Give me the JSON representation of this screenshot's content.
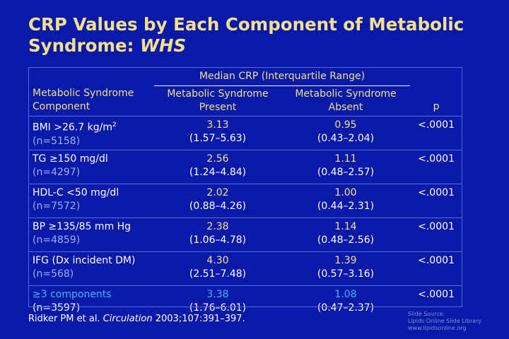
{
  "title": {
    "line1": "CRP Values by Each Component of Metabolic",
    "line2_prefix": "Syndrome: ",
    "line2_emph": "WHS"
  },
  "table": {
    "header": {
      "group": "Median CRP (Interquartile Range)",
      "component": "Metabolic Syndrome Component",
      "present": "Metabolic Syndrome Present",
      "absent": "Metabolic Syndrome Absent",
      "p": "p"
    },
    "rows": [
      {
        "label": "BMI >26.7 kg/m",
        "sup": "2",
        "n": "(n=5158)",
        "present_median": "3.13",
        "present_iqr": "(1.57–5.63)",
        "absent_median": "0.95",
        "absent_iqr": "(0.43–2.04)",
        "p": "<.0001"
      },
      {
        "label": "TG ≥150 mg/dl",
        "n": "(n=4297)",
        "present_median": "2.56",
        "present_iqr": "(1.24–4.84)",
        "absent_median": "1.11",
        "absent_iqr": "(0.48–2.57)",
        "p": "<.0001"
      },
      {
        "label": "HDL-C <50 mg/dl",
        "n": "(n=7572)",
        "present_median": "2.02",
        "present_iqr": "(0.88–4.26)",
        "absent_median": "1.00",
        "absent_iqr": "(0.44–2.31)",
        "p": "<.0001"
      },
      {
        "label": "BP ≥135/85 mm Hg",
        "n": "(n=4859)",
        "present_median": "2.38",
        "present_iqr": "(1.06–4.78)",
        "absent_median": "1.14",
        "absent_iqr": "(0.48–2.56)",
        "p": "<.0001"
      },
      {
        "label": "IFG (Dx incident DM)",
        "n": "(n=568)",
        "present_median": "4.30",
        "present_iqr": "(2.51–7.48)",
        "absent_median": "1.39",
        "absent_iqr": "(0.57–3.16)",
        "p": "<.0001"
      },
      {
        "label": "≥3 components",
        "n": "(n=3597)",
        "present_median": "3.38",
        "present_iqr": "(1.76–6.01)",
        "absent_median": "1.08",
        "absent_iqr": "(0.47–2.37)",
        "p": "<.0001"
      }
    ]
  },
  "citation": {
    "authors": "Ridker PM et al. ",
    "journal": "Circulation",
    "ref": " 2003;107:391–397."
  },
  "source": {
    "line1": "Slide Source:",
    "line2": "Lipids Online Slide Library",
    "line3": "www.lipidsonline.org"
  },
  "colors": {
    "background": "#0a1aa8",
    "title": "#f4e08a",
    "highlight": "#3fb6f2",
    "sample_size": "#9db0f2"
  }
}
